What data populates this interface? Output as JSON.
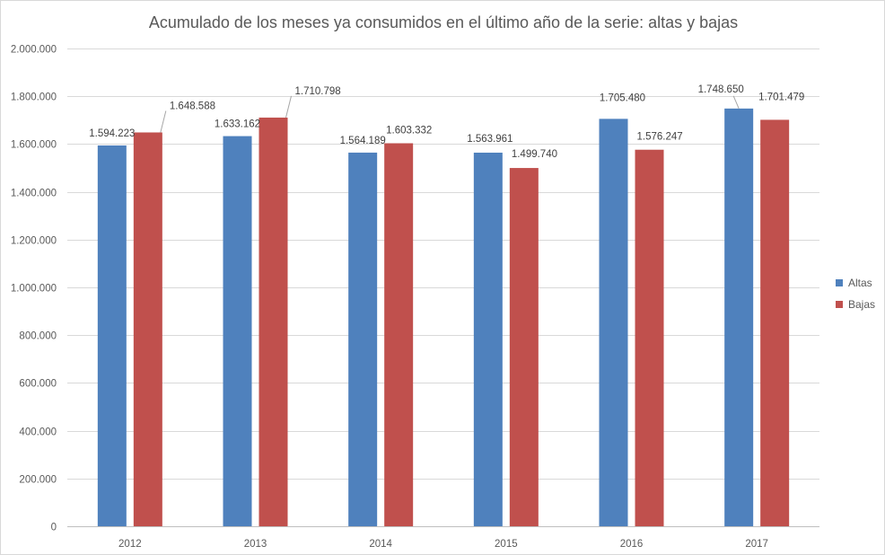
{
  "chart_data": {
    "type": "bar",
    "title": "Acumulado de los meses ya consumidos en el último año de la serie: altas y bajas",
    "categories": [
      "2012",
      "2013",
      "2014",
      "2015",
      "2016",
      "2017"
    ],
    "series": [
      {
        "name": "Altas",
        "color": "#4f81bd",
        "values": [
          1594223,
          1633162,
          1564189,
          1563961,
          1705480,
          1748650
        ],
        "labels": [
          "1.594.223",
          "1.633.162",
          "1.564.189",
          "1.563.961",
          "1.705.480",
          "1.748.650"
        ]
      },
      {
        "name": "Bajas",
        "color": "#c0504d",
        "values": [
          1648588,
          1710798,
          1603332,
          1499740,
          1576247,
          1701479
        ],
        "labels": [
          "1.648.588",
          "1.710.798",
          "1.603.332",
          "1.499.740",
          "1.576.247",
          "1.701.479"
        ]
      }
    ],
    "ylim": [
      0,
      2000000
    ],
    "yticks": [
      0,
      200000,
      400000,
      600000,
      800000,
      1000000,
      1200000,
      1400000,
      1600000,
      1800000,
      2000000
    ],
    "ytick_labels": [
      "0",
      "200.000",
      "400.000",
      "600.000",
      "800.000",
      "1.000.000",
      "1.200.000",
      "1.400.000",
      "1.600.000",
      "1.800.000",
      "2.000.000"
    ],
    "grid": true,
    "legend_position": "right"
  }
}
